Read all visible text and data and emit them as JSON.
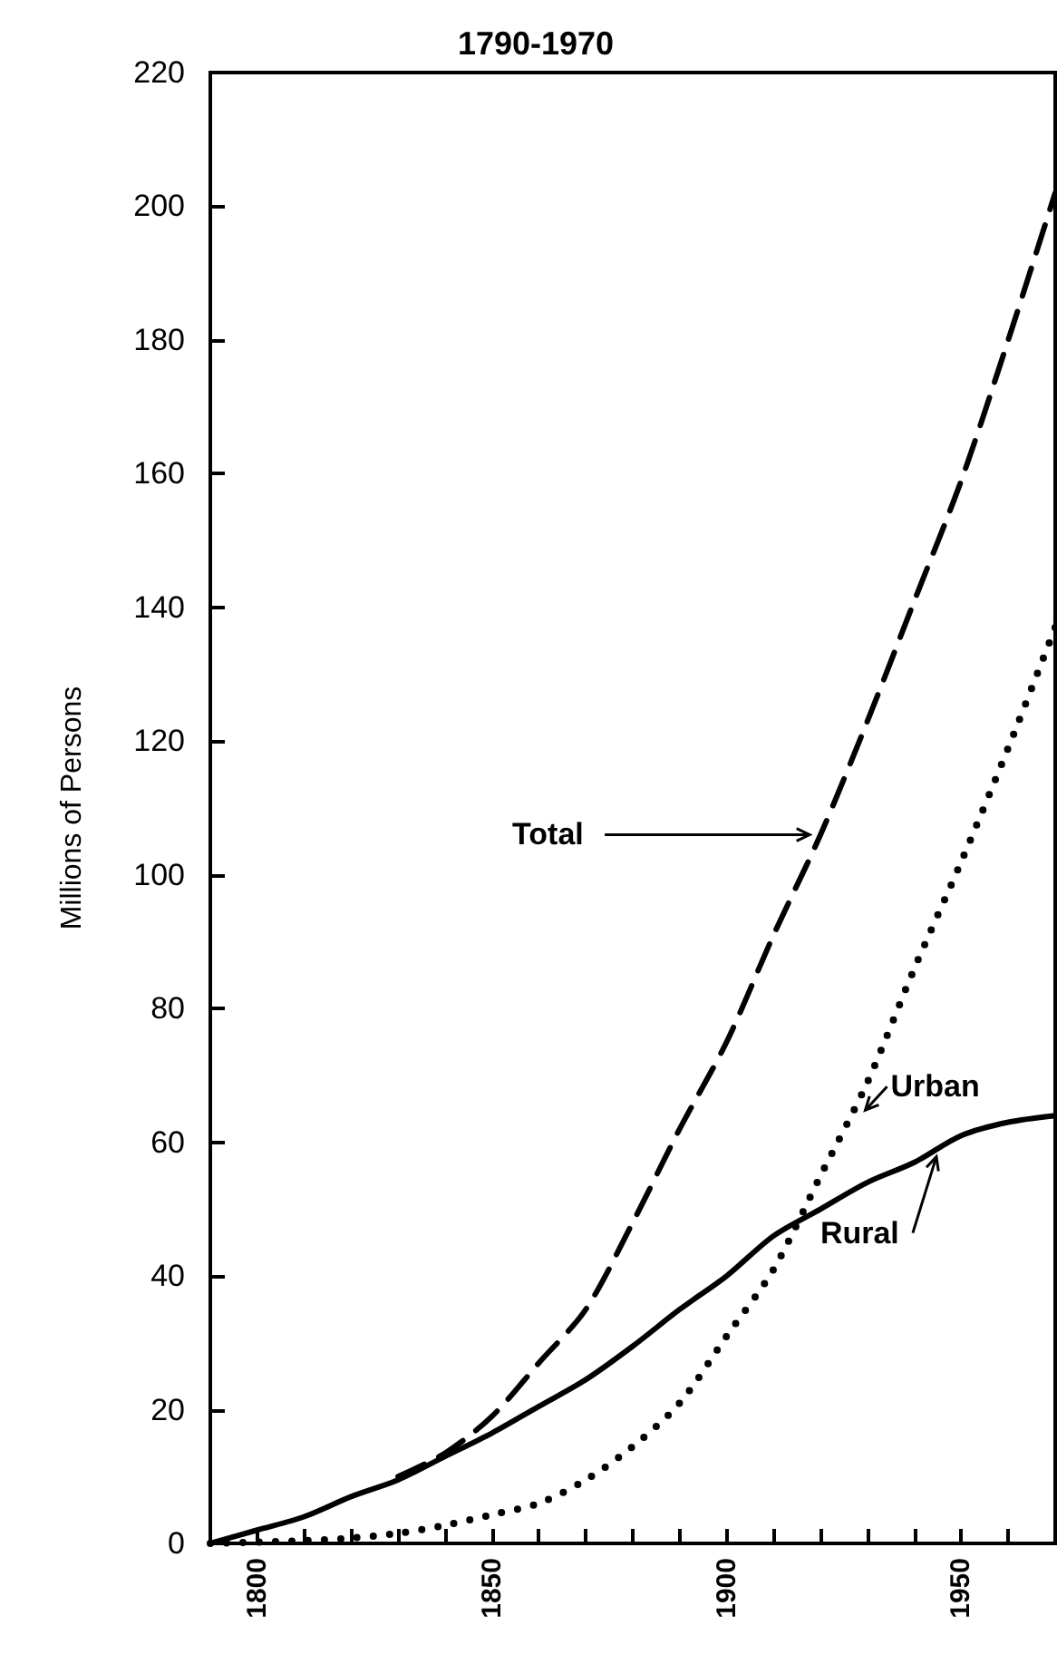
{
  "chart_data": {
    "type": "line",
    "title": "1790-1970",
    "ylabel": "Millions of Persons",
    "x": [
      1790,
      1800,
      1810,
      1820,
      1830,
      1840,
      1850,
      1860,
      1870,
      1880,
      1890,
      1900,
      1910,
      1920,
      1930,
      1940,
      1950,
      1960,
      1970
    ],
    "series": [
      {
        "color": "#000000",
        "line_style": "dashed",
        "values": [
          null,
          null,
          null,
          null,
          10,
          13.5,
          19,
          27,
          35,
          48,
          62,
          75,
          91,
          106,
          123,
          141,
          159,
          180,
          202
        ]
      },
      {
        "color": "#000000",
        "line_style": "dotted",
        "values": [
          0,
          0.2,
          0.4,
          0.8,
          1.5,
          2.7,
          4.3,
          6,
          9.5,
          14.5,
          21,
          31,
          41,
          55,
          69,
          86,
          102,
          119,
          137
        ]
      },
      {
        "color": "#000000",
        "line_style": "solid",
        "values": [
          0,
          2,
          4,
          7,
          9.5,
          13,
          16.5,
          20.5,
          24.5,
          29.5,
          35,
          40,
          46,
          50,
          54,
          57,
          61,
          63,
          64
        ]
      }
    ],
    "annotations": [
      {
        "text": "Total",
        "x": 1920,
        "y": 106
      },
      {
        "text": "Urban",
        "x": 1928,
        "y": 64
      },
      {
        "text": "Rural",
        "x": 1947,
        "y": 60
      }
    ],
    "xlim": [
      1790,
      1970
    ],
    "xticks": [
      {
        "value": 1790,
        "label": null
      },
      1800,
      {
        "value": 1810,
        "label": null
      },
      {
        "value": 1820,
        "label": null
      },
      {
        "value": 1830,
        "label": null
      },
      {
        "value": 1840,
        "label": null
      },
      1850,
      {
        "value": 1860,
        "label": null
      },
      {
        "value": 1870,
        "label": null
      },
      {
        "value": 1880,
        "label": null
      },
      {
        "value": 1890,
        "label": null
      },
      1900,
      {
        "value": 1910,
        "label": null
      },
      {
        "value": 1920,
        "label": null
      },
      {
        "value": 1930,
        "label": null
      },
      {
        "value": 1940,
        "label": null
      },
      1950,
      {
        "value": 1960,
        "label": null
      },
      {
        "value": 1970,
        "label": null
      }
    ],
    "ylim": [
      0,
      220
    ],
    "yticks": [
      0,
      20,
      40,
      60,
      80,
      100,
      120,
      140,
      160,
      180,
      200,
      220
    ],
    "grid": false,
    "marker": "none"
  }
}
